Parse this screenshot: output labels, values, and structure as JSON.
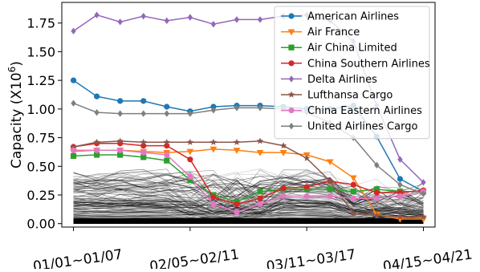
{
  "chart_data": {
    "type": "line",
    "title": "",
    "xlabel": "",
    "ylabel": "Capacity (X10",
    "ylabel_exp": "6",
    "ylabel_close": ")",
    "x_tick_labels": [
      "01/01~01/07",
      "02/05~02/11",
      "03/11~03/17",
      "04/15~04/21"
    ],
    "x_tick_weeks": [
      1,
      6,
      11,
      16
    ],
    "y_ticks": [
      "0.00",
      "0.25",
      "0.50",
      "0.75",
      "1.00",
      "1.25",
      "1.50",
      "1.75"
    ],
    "ylim": [
      -0.03,
      1.93
    ],
    "xlim": [
      0.5,
      16.5
    ],
    "grid": false,
    "legend_position": "top-right",
    "background_series_note": "many unlabeled gray/black lines of other airlines",
    "series": [
      {
        "name": "American Airlines",
        "color": "#1f77b4",
        "marker": "circle",
        "values": [
          1.25,
          1.11,
          1.07,
          1.07,
          1.02,
          0.98,
          1.02,
          1.03,
          1.03,
          1.02,
          1.0,
          1.0,
          1.03,
          0.76,
          0.39,
          0.28
        ]
      },
      {
        "name": "Air France",
        "color": "#ff7f0e",
        "marker": "triangle-down",
        "values": [
          0.63,
          0.64,
          0.64,
          0.63,
          0.62,
          0.63,
          0.65,
          0.64,
          0.62,
          0.62,
          0.6,
          0.54,
          0.4,
          0.08,
          0.04,
          0.04
        ]
      },
      {
        "name": "Air China Limited",
        "color": "#2ca02c",
        "marker": "square",
        "values": [
          0.59,
          0.6,
          0.6,
          0.58,
          0.55,
          0.38,
          0.25,
          0.19,
          0.28,
          0.3,
          0.3,
          0.3,
          0.28,
          0.3,
          0.28,
          0.28
        ]
      },
      {
        "name": "China Southern Airlines",
        "color": "#d62728",
        "marker": "circle",
        "values": [
          0.67,
          0.7,
          0.7,
          0.68,
          0.68,
          0.56,
          0.23,
          0.17,
          0.22,
          0.31,
          0.32,
          0.37,
          0.34,
          0.27,
          0.27,
          0.29
        ]
      },
      {
        "name": "Delta Airlines",
        "color": "#9467bd",
        "marker": "diamond",
        "values": [
          1.68,
          1.82,
          1.76,
          1.81,
          1.77,
          1.8,
          1.74,
          1.78,
          1.78,
          1.81,
          1.82,
          1.77,
          1.59,
          1.03,
          0.56,
          0.36
        ]
      },
      {
        "name": "Lufthansa Cargo",
        "color": "#8c564b",
        "marker": "star",
        "values": [
          0.67,
          0.71,
          0.72,
          0.71,
          0.71,
          0.71,
          0.71,
          0.71,
          0.72,
          0.68,
          0.57,
          0.37,
          0.09,
          0.07,
          0.06,
          0.06
        ]
      },
      {
        "name": "China Eastern Airlines",
        "color": "#e377c2",
        "marker": "circle",
        "values": [
          0.64,
          0.64,
          0.64,
          0.62,
          0.6,
          0.41,
          0.17,
          0.1,
          0.17,
          0.24,
          0.24,
          0.24,
          0.22,
          0.22,
          0.24,
          0.28
        ]
      },
      {
        "name": "United Airlines Cargo",
        "color": "#7f7f7f",
        "marker": "diamond",
        "values": [
          1.05,
          0.97,
          0.96,
          0.96,
          0.96,
          0.96,
          0.99,
          1.01,
          1.01,
          1.0,
          0.97,
          0.88,
          0.75,
          0.51,
          0.34,
          0.26
        ]
      }
    ]
  }
}
